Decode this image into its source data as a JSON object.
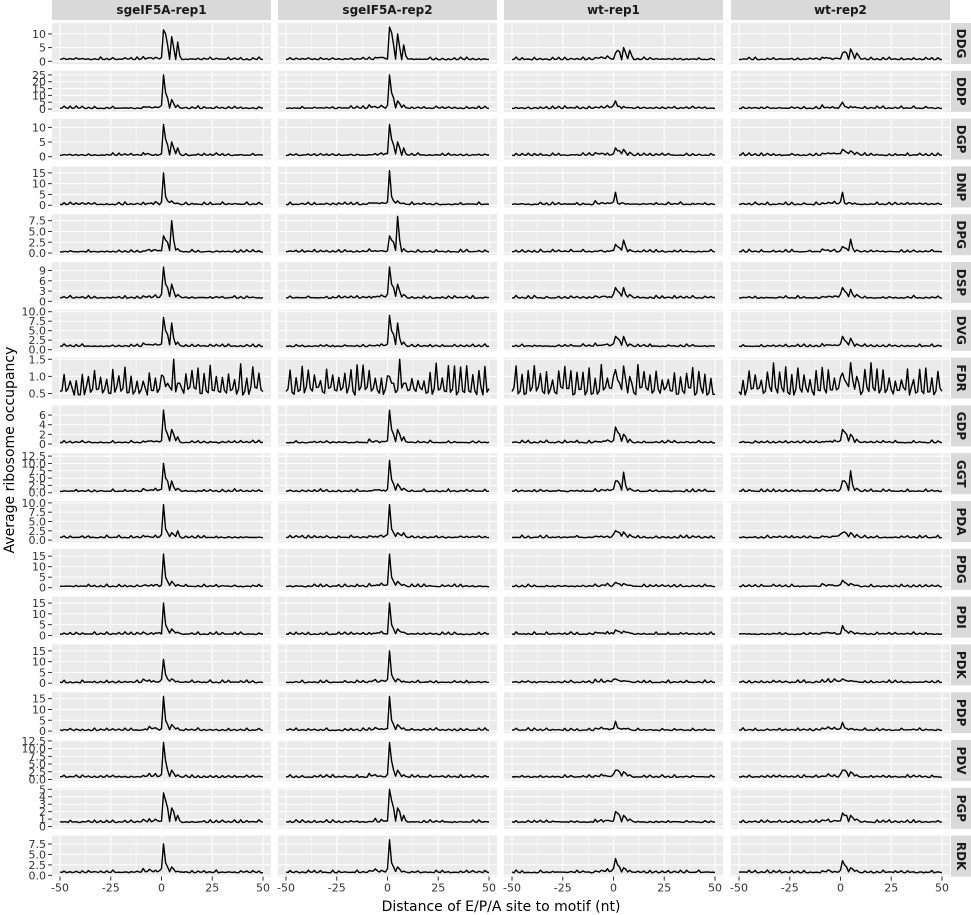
{
  "chart_data": {
    "type": "line",
    "facet_layout": "grid",
    "xlabel": "Distance of E/P/A site to motif (nt)",
    "ylabel": "Average ribosome occupancy",
    "x_range": [
      -50,
      50
    ],
    "x_ticks": [
      -50,
      -25,
      0,
      25,
      50
    ],
    "x_tick_labels": [
      "-50",
      "-25",
      "0",
      "25",
      "50"
    ],
    "columns": [
      "sgeIF5A-rep1",
      "sgeIF5A-rep2",
      "wt-rep1",
      "wt-rep2"
    ],
    "line_color": "#000000",
    "panel_background": "#ebebeb",
    "grid": true,
    "peak_positions": [
      1,
      2,
      3,
      5,
      6,
      8,
      9
    ],
    "rows": [
      {
        "motif": "DDG",
        "y_range": [
          -1,
          14
        ],
        "y_ticks": [
          0,
          5,
          10
        ],
        "y_tick_labels": [
          "0",
          "5",
          "10"
        ],
        "baseline": 0.7,
        "peaks": [
          [
            11.5,
            10,
            6,
            9,
            5,
            7,
            2
          ],
          [
            12.5,
            10.5,
            6,
            10,
            5,
            6,
            2
          ],
          [
            3,
            4,
            3.5,
            5,
            3,
            4,
            2
          ],
          [
            3,
            3.5,
            3,
            4.5,
            3,
            3,
            2
          ]
        ]
      },
      {
        "motif": "DDP",
        "y_range": [
          -2,
          28
        ],
        "y_ticks": [
          0,
          5,
          10,
          15,
          20,
          25
        ],
        "y_tick_labels": [
          "0",
          "5",
          "10",
          "15",
          "20",
          "25"
        ],
        "baseline": 0.6,
        "peaks": [
          [
            25,
            12,
            8,
            7,
            4,
            3,
            1
          ],
          [
            25,
            12,
            8,
            6,
            4,
            3,
            1
          ],
          [
            6,
            2,
            2,
            2,
            1,
            1,
            1
          ],
          [
            5,
            2,
            1.5,
            2,
            1,
            1,
            1
          ]
        ]
      },
      {
        "motif": "DGP",
        "y_range": [
          -1,
          13
        ],
        "y_ticks": [
          0,
          5,
          10
        ],
        "y_tick_labels": [
          "0",
          "5",
          "10"
        ],
        "baseline": 0.5,
        "peaks": [
          [
            11,
            6,
            4,
            5,
            3,
            3,
            1
          ],
          [
            11,
            6,
            4,
            5,
            3,
            3,
            1
          ],
          [
            3,
            2,
            2,
            2.5,
            1.5,
            1.5,
            1
          ],
          [
            2.5,
            2,
            1.5,
            2,
            1.5,
            1.5,
            1
          ]
        ]
      },
      {
        "motif": "DNP",
        "y_range": [
          -1,
          18
        ],
        "y_ticks": [
          0,
          5,
          10,
          15
        ],
        "y_tick_labels": [
          "0",
          "5",
          "10",
          "15"
        ],
        "baseline": 0.4,
        "peaks": [
          [
            15,
            4,
            2,
            2,
            1,
            1,
            0.5
          ],
          [
            16,
            4,
            2,
            2,
            1,
            1,
            0.5
          ],
          [
            6,
            1,
            0.5,
            1,
            0.5,
            0.5,
            0.5
          ],
          [
            6,
            1,
            0.5,
            1,
            0.5,
            0.5,
            0.5
          ]
        ]
      },
      {
        "motif": "DPG",
        "y_range": [
          -0.5,
          9
        ],
        "y_ticks": [
          0,
          2.5,
          5,
          7.5
        ],
        "y_tick_labels": [
          "0.0",
          "2.5",
          "5.0",
          "7.5"
        ],
        "baseline": 0.3,
        "peaks": [
          [
            4,
            3,
            2.5,
            7.5,
            3,
            1,
            0.5
          ],
          [
            4,
            3,
            2.5,
            8.5,
            3,
            1,
            0.5
          ],
          [
            2,
            1.5,
            1.2,
            3,
            1.5,
            0.8,
            0.5
          ],
          [
            1.5,
            1.2,
            1,
            3.2,
            1.2,
            0.7,
            0.5
          ]
        ]
      },
      {
        "motif": "DSP",
        "y_range": [
          -0.5,
          11.5
        ],
        "y_ticks": [
          0,
          3,
          6,
          9
        ],
        "y_tick_labels": [
          "0",
          "3",
          "6",
          "9"
        ],
        "baseline": 1.0,
        "peaks": [
          [
            10,
            5,
            4,
            5,
            3,
            2,
            1.5
          ],
          [
            10,
            5,
            4,
            5,
            3,
            2,
            1.5
          ],
          [
            4,
            3,
            2.5,
            4,
            2,
            2,
            1.5
          ],
          [
            4,
            3,
            2.5,
            3.5,
            2,
            2,
            1.5
          ]
        ]
      },
      {
        "motif": "DVG",
        "y_range": [
          -0.3,
          10.5
        ],
        "y_ticks": [
          0,
          2.5,
          5,
          7.5,
          10
        ],
        "y_tick_labels": [
          "0.0",
          "2.5",
          "5.0",
          "7.5",
          "10.0"
        ],
        "baseline": 0.9,
        "peaks": [
          [
            8.5,
            5,
            4,
            7,
            3,
            2,
            1.2
          ],
          [
            9,
            5,
            4,
            7,
            3,
            2,
            1.2
          ],
          [
            3.5,
            3,
            2.5,
            3.5,
            2,
            1.5,
            1.2
          ],
          [
            3.5,
            2.5,
            2,
            3,
            2,
            1.5,
            1.2
          ]
        ]
      },
      {
        "motif": "FDR",
        "y_range": [
          0.35,
          1.55
        ],
        "y_ticks": [
          0.5,
          1.0,
          1.5
        ],
        "y_tick_labels": [
          "0.5",
          "1.0",
          "1.5"
        ],
        "baseline": 0.7,
        "peaks": [
          [
            1.0,
            0.7,
            0.8,
            0.6,
            1.5,
            0.8,
            0.8
          ],
          [
            1.0,
            0.8,
            0.8,
            0.6,
            1.5,
            0.8,
            0.8
          ],
          [
            1.2,
            0.9,
            0.8,
            1.3,
            0.9,
            1.0,
            0.8
          ],
          [
            1.1,
            0.9,
            0.8,
            1.4,
            0.9,
            1.0,
            0.8
          ]
        ]
      },
      {
        "motif": "GDP",
        "y_range": [
          -0.5,
          8
        ],
        "y_ticks": [
          0,
          2,
          4,
          6
        ],
        "y_tick_labels": [
          "0",
          "2",
          "4",
          "6"
        ],
        "baseline": 0.3,
        "peaks": [
          [
            7,
            3,
            2,
            3,
            2,
            1.5,
            0.5
          ],
          [
            7,
            3,
            2,
            3,
            2,
            1.5,
            0.5
          ],
          [
            3.5,
            2.5,
            2,
            2,
            1.5,
            1,
            0.5
          ],
          [
            3,
            2.5,
            2,
            2,
            1.5,
            1,
            0.5
          ]
        ]
      },
      {
        "motif": "GGT",
        "y_range": [
          -0.5,
          13.5
        ],
        "y_ticks": [
          0,
          2.5,
          5,
          7.5,
          10,
          12.5
        ],
        "y_tick_labels": [
          "0.0",
          "2.5",
          "5.0",
          "7.5",
          "10.0",
          "12.5"
        ],
        "baseline": 0.5,
        "peaks": [
          [
            10,
            5,
            4,
            4,
            2,
            1.5,
            1
          ],
          [
            11,
            4.5,
            3,
            3,
            2,
            1.5,
            1
          ],
          [
            4,
            4,
            3,
            7,
            2.5,
            1.5,
            1
          ],
          [
            4,
            4,
            3,
            7.5,
            2.5,
            1.5,
            1
          ]
        ]
      },
      {
        "motif": "PDA",
        "y_range": [
          -0.5,
          10.5
        ],
        "y_ticks": [
          0,
          2.5,
          5,
          7.5,
          10
        ],
        "y_tick_labels": [
          "0.0",
          "2.5",
          "5.0",
          "7.5",
          "10.0"
        ],
        "baseline": 0.7,
        "peaks": [
          [
            9.5,
            3,
            2,
            2,
            1.5,
            2.5,
            1
          ],
          [
            9.5,
            3,
            2,
            2,
            1.5,
            2,
            1
          ],
          [
            2.5,
            2.2,
            2,
            2.2,
            1.5,
            1.5,
            1
          ],
          [
            2,
            2.2,
            1.8,
            2,
            1.5,
            1.5,
            1
          ]
        ]
      },
      {
        "motif": "PDG",
        "y_range": [
          -1,
          18.5
        ],
        "y_ticks": [
          0,
          5,
          10,
          15
        ],
        "y_tick_labels": [
          "0",
          "5",
          "10",
          "15"
        ],
        "baseline": 0.6,
        "peaks": [
          [
            16,
            5,
            3,
            3,
            2,
            1.5,
            1
          ],
          [
            16,
            5,
            3,
            3,
            2,
            1.5,
            1
          ],
          [
            2.5,
            2,
            1.8,
            2,
            1.5,
            1.2,
            1
          ],
          [
            3.5,
            2.5,
            2,
            2,
            1.5,
            1.2,
            1
          ]
        ]
      },
      {
        "motif": "PDI",
        "y_range": [
          -1,
          18
        ],
        "y_ticks": [
          0,
          5,
          10,
          15
        ],
        "y_tick_labels": [
          "0",
          "5",
          "10",
          "15"
        ],
        "baseline": 0.6,
        "peaks": [
          [
            15,
            5,
            3,
            3,
            2,
            1.5,
            1
          ],
          [
            15,
            5,
            3,
            3,
            2,
            1.5,
            1
          ],
          [
            2.5,
            2,
            1.8,
            2,
            1.5,
            1.2,
            1
          ],
          [
            4.5,
            2.5,
            2,
            2,
            1.5,
            1.2,
            1
          ]
        ]
      },
      {
        "motif": "PDK",
        "y_range": [
          -1,
          18
        ],
        "y_ticks": [
          0,
          5,
          10,
          15
        ],
        "y_tick_labels": [
          "0",
          "5",
          "10",
          "15"
        ],
        "baseline": 0.4,
        "peaks": [
          [
            11,
            4,
            2,
            2,
            1.5,
            1,
            0.5
          ],
          [
            15,
            4,
            2,
            2,
            1.5,
            1,
            0.5
          ],
          [
            2,
            1.5,
            1.2,
            1.2,
            1,
            0.8,
            0.5
          ],
          [
            2,
            1.5,
            1.2,
            1.2,
            1,
            0.8,
            0.5
          ]
        ]
      },
      {
        "motif": "PDP",
        "y_range": [
          -1,
          18
        ],
        "y_ticks": [
          0,
          5,
          10,
          15
        ],
        "y_tick_labels": [
          "0",
          "5",
          "10",
          "15"
        ],
        "baseline": 0.4,
        "peaks": [
          [
            16,
            5,
            3,
            3,
            2,
            1.5,
            0.5
          ],
          [
            16,
            5,
            3,
            3,
            2,
            1.5,
            0.5
          ],
          [
            4.5,
            1.5,
            1.2,
            1.2,
            1,
            0.8,
            0.5
          ],
          [
            4,
            1.5,
            1.2,
            1.2,
            1,
            0.8,
            0.5
          ]
        ]
      },
      {
        "motif": "PDV",
        "y_range": [
          -0.5,
          12.8
        ],
        "y_ticks": [
          0,
          2.5,
          5,
          7.5,
          10,
          12.5
        ],
        "y_tick_labels": [
          "0.0",
          "2.5",
          "5.0",
          "7.5",
          "10.0",
          "12.5"
        ],
        "baseline": 0.8,
        "peaks": [
          [
            12,
            6,
            3,
            3,
            2,
            1.5,
            1
          ],
          [
            12,
            6,
            3,
            3,
            2,
            1.5,
            1
          ],
          [
            3,
            3,
            2.5,
            2.5,
            2,
            1.5,
            1
          ],
          [
            3,
            3,
            2.5,
            2.5,
            2,
            1.5,
            1
          ]
        ]
      },
      {
        "motif": "PGP",
        "y_range": [
          -0.3,
          5.2
        ],
        "y_ticks": [
          0,
          1,
          2,
          3,
          4,
          5
        ],
        "y_tick_labels": [
          "0",
          "1",
          "2",
          "3",
          "4",
          "5"
        ],
        "baseline": 0.6,
        "peaks": [
          [
            4.5,
            3.5,
            2.5,
            2.5,
            2,
            1.5,
            0.8
          ],
          [
            5,
            3.5,
            2.5,
            2.5,
            2,
            1.5,
            0.8
          ],
          [
            2,
            1.8,
            1.5,
            1.5,
            1.2,
            1,
            0.8
          ],
          [
            1.8,
            1.5,
            1.5,
            1.5,
            1.2,
            1,
            0.8
          ]
        ]
      },
      {
        "motif": "RDK",
        "y_range": [
          -0.3,
          9.5
        ],
        "y_ticks": [
          0,
          2.5,
          5,
          7.5
        ],
        "y_tick_labels": [
          "0.0",
          "2.5",
          "5.0",
          "7.5"
        ],
        "baseline": 0.7,
        "peaks": [
          [
            7.5,
            3,
            2,
            2,
            1.5,
            1,
            0.8
          ],
          [
            8.5,
            3,
            2,
            2,
            1.5,
            1,
            0.8
          ],
          [
            4,
            2.5,
            2,
            1.8,
            1.5,
            1.2,
            0.8
          ],
          [
            3.5,
            2.5,
            2,
            1.8,
            1.5,
            1.2,
            0.8
          ]
        ]
      }
    ]
  }
}
